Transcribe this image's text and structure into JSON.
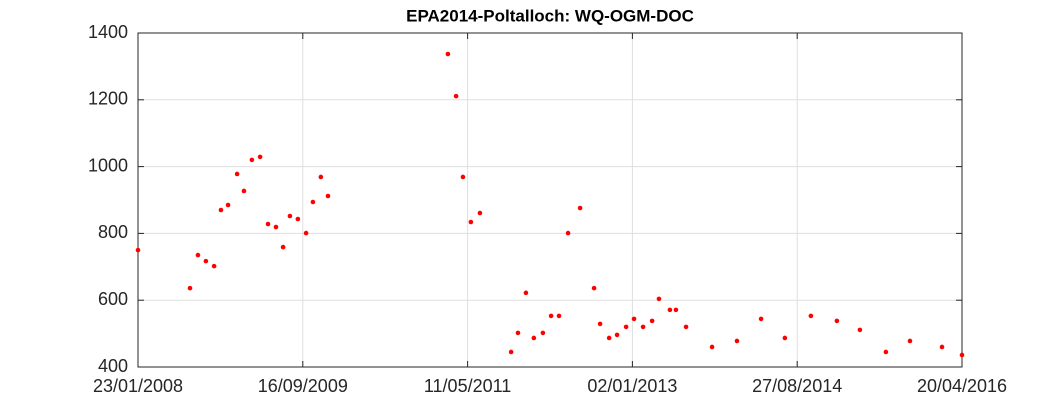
{
  "chart_data": {
    "type": "scatter",
    "title": "EPA2014-Poltalloch: WQ-OGM-DOC",
    "x": [
      "2008-01-23",
      "2008-07-31",
      "2008-08-29",
      "2008-09-27",
      "2008-10-27",
      "2008-11-21",
      "2008-12-17",
      "2009-01-19",
      "2009-02-13",
      "2009-03-14",
      "2009-04-13",
      "2009-05-12",
      "2009-06-10",
      "2009-07-06",
      "2009-07-31",
      "2009-08-29",
      "2009-09-28",
      "2009-10-23",
      "2009-11-21",
      "2009-12-17",
      "2011-02-28",
      "2011-03-30",
      "2011-04-24",
      "2011-05-23",
      "2011-06-25",
      "2011-10-17",
      "2011-11-11",
      "2011-12-10",
      "2012-01-08",
      "2012-02-10",
      "2012-03-11",
      "2012-04-09",
      "2012-05-12",
      "2012-06-25",
      "2012-08-15",
      "2012-09-06",
      "2012-10-09",
      "2012-11-07",
      "2012-12-10",
      "2013-01-08",
      "2013-02-10",
      "2013-03-15",
      "2013-04-09",
      "2013-05-19",
      "2013-06-10",
      "2013-07-17",
      "2013-10-20",
      "2014-01-19",
      "2014-04-17",
      "2014-07-13",
      "2014-10-16",
      "2015-01-19",
      "2015-04-13",
      "2015-07-17",
      "2015-10-13",
      "2016-02-07",
      "2016-04-20"
    ],
    "y": [
      750,
      636,
      735,
      717,
      702,
      870,
      885,
      978,
      927,
      1020,
      1029,
      828,
      819,
      759,
      852,
      843,
      801,
      894,
      969,
      912,
      1337,
      1211,
      969,
      834,
      861,
      445,
      502,
      622,
      487,
      502,
      553,
      553,
      801,
      876,
      636,
      529,
      487,
      496,
      520,
      544,
      520,
      538,
      604,
      571,
      571,
      520,
      460,
      478,
      544,
      487,
      553,
      538,
      511,
      445,
      478,
      460,
      436
    ],
    "color": "#ff0000",
    "xlim": [
      "2008-01-23",
      "2016-04-20"
    ],
    "xticks": [
      {
        "value": "2008-01-23",
        "label": "23/01/2008"
      },
      {
        "value": "2009-09-16",
        "label": "16/09/2009"
      },
      {
        "value": "2011-05-11",
        "label": "11/05/2011"
      },
      {
        "value": "2013-01-02",
        "label": "02/01/2013"
      },
      {
        "value": "2014-08-27",
        "label": "27/08/2014"
      },
      {
        "value": "2016-04-20",
        "label": "20/04/2016"
      }
    ],
    "ylim": [
      400,
      1400
    ],
    "yticks": [
      400,
      600,
      800,
      1000,
      1200,
      1400
    ],
    "grid": true
  }
}
